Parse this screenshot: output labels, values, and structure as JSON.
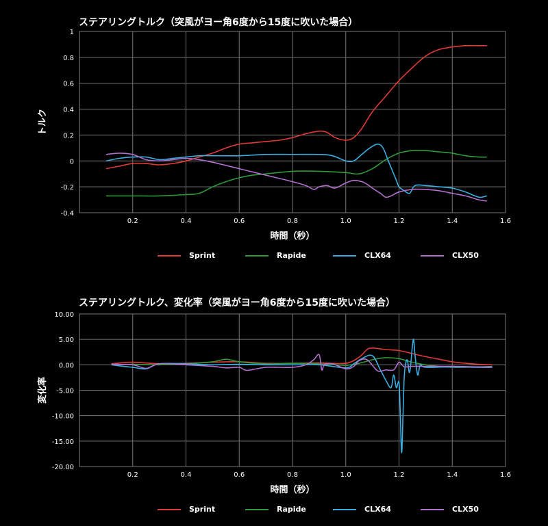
{
  "chart_data": [
    {
      "type": "line",
      "title": "ステアリングトルク（突風がヨー角6度から15度に吹いた場合）",
      "xlabel": "時間（秒）",
      "ylabel": "トルク",
      "xlim": [
        0,
        1.6
      ],
      "ylim": [
        -0.4,
        1
      ],
      "xticks": [
        "0.2",
        "0.4",
        "0.6",
        "0.8",
        "1.0",
        "1.2",
        "1.4",
        "1.6"
      ],
      "yticks": [
        "1",
        "0.8",
        "0.6",
        "0.4",
        "0.2",
        "0",
        "-0.2",
        "-0.4"
      ],
      "grid": true,
      "legend_position": "bottom",
      "series": [
        {
          "name": "Sprint",
          "color": "#e03a36",
          "x": [
            0.1,
            0.15,
            0.2,
            0.25,
            0.3,
            0.35,
            0.4,
            0.45,
            0.5,
            0.55,
            0.6,
            0.65,
            0.7,
            0.75,
            0.8,
            0.85,
            0.9,
            0.93,
            0.96,
            1.0,
            1.03,
            1.06,
            1.1,
            1.15,
            1.2,
            1.25,
            1.3,
            1.35,
            1.4,
            1.45,
            1.5,
            1.53
          ],
          "y": [
            -0.06,
            -0.04,
            -0.02,
            -0.02,
            -0.03,
            -0.02,
            0.0,
            0.03,
            0.06,
            0.1,
            0.13,
            0.14,
            0.15,
            0.16,
            0.18,
            0.21,
            0.23,
            0.22,
            0.18,
            0.16,
            0.18,
            0.25,
            0.38,
            0.5,
            0.62,
            0.72,
            0.81,
            0.86,
            0.88,
            0.89,
            0.89,
            0.89
          ]
        },
        {
          "name": "Rapide",
          "color": "#2f9a3a",
          "x": [
            0.1,
            0.2,
            0.3,
            0.4,
            0.45,
            0.5,
            0.55,
            0.6,
            0.65,
            0.7,
            0.8,
            0.9,
            1.0,
            1.05,
            1.1,
            1.15,
            1.2,
            1.25,
            1.3,
            1.35,
            1.4,
            1.45,
            1.5,
            1.53
          ],
          "y": [
            -0.27,
            -0.27,
            -0.27,
            -0.26,
            -0.25,
            -0.2,
            -0.16,
            -0.13,
            -0.11,
            -0.1,
            -0.08,
            -0.08,
            -0.09,
            -0.1,
            -0.06,
            0.01,
            0.06,
            0.08,
            0.08,
            0.07,
            0.06,
            0.04,
            0.03,
            0.03
          ]
        },
        {
          "name": "CLX64",
          "color": "#3aaee0",
          "x": [
            0.1,
            0.15,
            0.2,
            0.25,
            0.3,
            0.35,
            0.4,
            0.45,
            0.5,
            0.6,
            0.7,
            0.8,
            0.9,
            0.95,
            1.0,
            1.03,
            1.06,
            1.09,
            1.12,
            1.14,
            1.16,
            1.18,
            1.19,
            1.2,
            1.22,
            1.24,
            1.26,
            1.3,
            1.35,
            1.4,
            1.45,
            1.5,
            1.53
          ],
          "y": [
            0.0,
            0.02,
            0.03,
            0.03,
            0.01,
            0.02,
            0.03,
            0.04,
            0.04,
            0.04,
            0.05,
            0.05,
            0.05,
            0.04,
            0.0,
            0.0,
            0.05,
            0.1,
            0.13,
            0.1,
            0.0,
            -0.1,
            -0.15,
            -0.2,
            -0.23,
            -0.25,
            -0.19,
            -0.19,
            -0.2,
            -0.21,
            -0.24,
            -0.28,
            -0.27
          ]
        },
        {
          "name": "CLX50",
          "color": "#b36fd0",
          "x": [
            0.1,
            0.15,
            0.2,
            0.25,
            0.3,
            0.35,
            0.4,
            0.45,
            0.5,
            0.6,
            0.7,
            0.8,
            0.85,
            0.88,
            0.9,
            0.93,
            0.96,
            1.0,
            1.03,
            1.06,
            1.08,
            1.1,
            1.13,
            1.15,
            1.17,
            1.2,
            1.25,
            1.3,
            1.35,
            1.4,
            1.45,
            1.5,
            1.53
          ],
          "y": [
            0.05,
            0.06,
            0.05,
            0.01,
            0.0,
            0.01,
            0.02,
            0.01,
            -0.01,
            -0.06,
            -0.11,
            -0.16,
            -0.19,
            -0.22,
            -0.2,
            -0.19,
            -0.21,
            -0.17,
            -0.15,
            -0.16,
            -0.18,
            -0.21,
            -0.25,
            -0.28,
            -0.27,
            -0.24,
            -0.22,
            -0.22,
            -0.23,
            -0.25,
            -0.27,
            -0.3,
            -0.31
          ]
        }
      ]
    },
    {
      "type": "line",
      "title": "ステアリングトルク、変化率（突風がヨー角6度から15度に吹いた場合）",
      "xlabel": "時間（秒）",
      "ylabel": "変化率",
      "xlim": [
        0,
        1.6
      ],
      "ylim": [
        -20,
        10
      ],
      "xticks": [
        "0.2",
        "0.4",
        "0.6",
        "0.8",
        "1.0",
        "1.2",
        "1.4",
        "1.6"
      ],
      "yticks": [
        "10.00",
        "5.00",
        "0.00",
        "-5.00",
        "-10.00",
        "-15.00",
        "-20.00"
      ],
      "grid": true,
      "legend_position": "bottom",
      "series": [
        {
          "name": "Sprint",
          "color": "#e03a36",
          "x": [
            0.12,
            0.2,
            0.3,
            0.4,
            0.5,
            0.6,
            0.7,
            0.8,
            0.9,
            1.0,
            1.05,
            1.08,
            1.1,
            1.15,
            1.2,
            1.25,
            1.3,
            1.35,
            1.4,
            1.45,
            1.5,
            1.55
          ],
          "y": [
            0.2,
            0.5,
            0.2,
            0.3,
            0.5,
            0.6,
            0.3,
            0.3,
            0.4,
            0.3,
            1.5,
            3.0,
            3.3,
            3.0,
            2.8,
            2.2,
            1.6,
            1.1,
            0.6,
            0.3,
            0.1,
            0.0
          ]
        },
        {
          "name": "Rapide",
          "color": "#2f9a3a",
          "x": [
            0.12,
            0.2,
            0.3,
            0.4,
            0.5,
            0.55,
            0.6,
            0.7,
            0.8,
            0.9,
            1.0,
            1.05,
            1.1,
            1.15,
            1.2,
            1.25,
            1.3,
            1.35,
            1.4,
            1.5,
            1.55
          ],
          "y": [
            0.0,
            0.1,
            0.0,
            0.2,
            0.6,
            1.1,
            0.6,
            0.2,
            0.3,
            0.2,
            -0.1,
            0.3,
            1.0,
            1.4,
            1.2,
            0.5,
            0.0,
            -0.3,
            -0.5,
            -0.4,
            -0.3
          ]
        },
        {
          "name": "CLX64",
          "color": "#3aaee0",
          "x": [
            0.12,
            0.2,
            0.25,
            0.3,
            0.4,
            0.5,
            0.6,
            0.7,
            0.8,
            0.9,
            1.0,
            1.03,
            1.06,
            1.1,
            1.13,
            1.15,
            1.17,
            1.18,
            1.19,
            1.2,
            1.205,
            1.21,
            1.215,
            1.22,
            1.23,
            1.24,
            1.25,
            1.255,
            1.26,
            1.27,
            1.28,
            1.3,
            1.4,
            1.5,
            1.55
          ],
          "y": [
            0.0,
            -0.5,
            -0.8,
            0.2,
            0.2,
            0.0,
            0.1,
            0.0,
            0.0,
            0.0,
            -0.6,
            0.2,
            1.2,
            1.8,
            -1.0,
            -3.0,
            -4.5,
            -2.0,
            -4.5,
            -3.5,
            -10.0,
            -17.3,
            -10.0,
            -2.0,
            1.0,
            -1.5,
            3.5,
            5.0,
            2.0,
            -2.0,
            0.0,
            -0.5,
            -0.4,
            -0.5,
            -0.5
          ]
        },
        {
          "name": "CLX50",
          "color": "#b36fd0",
          "x": [
            0.12,
            0.2,
            0.25,
            0.3,
            0.4,
            0.5,
            0.55,
            0.6,
            0.63,
            0.7,
            0.8,
            0.85,
            0.88,
            0.9,
            0.91,
            0.92,
            0.95,
            1.0,
            1.03,
            1.05,
            1.08,
            1.12,
            1.15,
            1.18,
            1.2,
            1.22,
            1.25,
            1.3,
            1.4,
            1.5,
            1.55
          ],
          "y": [
            0.1,
            0.0,
            -0.7,
            0.2,
            0.0,
            -0.3,
            -0.6,
            -0.5,
            -1.1,
            -0.5,
            -0.5,
            0.0,
            1.0,
            2.0,
            -1.0,
            0.0,
            0.2,
            -0.8,
            -0.3,
            0.8,
            1.0,
            -1.2,
            -1.0,
            -1.0,
            0.5,
            -0.4,
            -0.3,
            -0.3,
            -0.3,
            -0.4,
            -0.4
          ]
        }
      ]
    }
  ]
}
